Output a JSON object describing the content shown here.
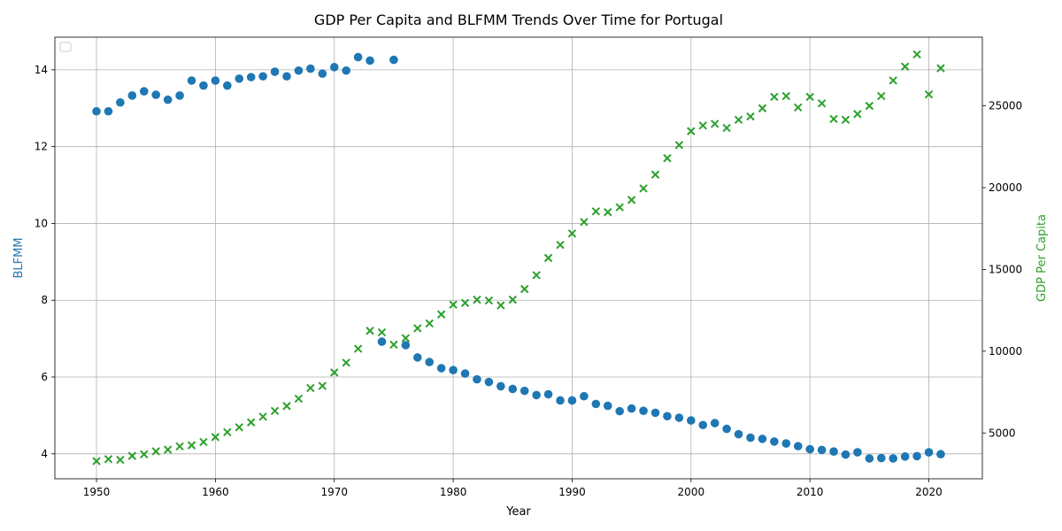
{
  "chart_data": {
    "type": "scatter",
    "title": "GDP Per Capita and BLFMM Trends Over Time for Portugal",
    "xlabel": "Year",
    "ylabel_left": "BLFMM",
    "ylabel_right": "GDP Per Capita",
    "xlim": [
      1946.5,
      2024.5
    ],
    "ylim_left": [
      3.35,
      14.85
    ],
    "ylim_right": [
      2200,
      29200
    ],
    "x_ticks": [
      1950,
      1960,
      1970,
      1980,
      1990,
      2000,
      2010,
      2020
    ],
    "y_ticks_left": [
      4,
      6,
      8,
      10,
      12,
      14
    ],
    "y_ticks_right": [
      5000,
      10000,
      15000,
      20000,
      25000
    ],
    "grid": true,
    "legend": "top-left (empty)",
    "colors": {
      "blfmm": "#1f77b4",
      "gdp": "#2ca02c"
    },
    "series": [
      {
        "name": "BLFMM",
        "axis": "left",
        "marker": "circle",
        "x": [
          1950,
          1951,
          1952,
          1953,
          1954,
          1955,
          1956,
          1957,
          1958,
          1959,
          1960,
          1961,
          1962,
          1963,
          1964,
          1965,
          1966,
          1967,
          1968,
          1969,
          1970,
          1971,
          1972,
          1973,
          1974,
          1975,
          1976,
          1977,
          1978,
          1979,
          1980,
          1981,
          1982,
          1983,
          1984,
          1985,
          1986,
          1987,
          1988,
          1989,
          1990,
          1991,
          1992,
          1993,
          1994,
          1995,
          1996,
          1997,
          1998,
          1999,
          2000,
          2001,
          2002,
          2003,
          2004,
          2005,
          2006,
          2007,
          2008,
          2009,
          2010,
          2011,
          2012,
          2013,
          2014,
          2015,
          2016,
          2017,
          2018,
          2019,
          2020,
          2021
        ],
        "y": [
          12.92,
          12.92,
          13.15,
          13.33,
          13.44,
          13.35,
          13.22,
          13.33,
          13.72,
          13.59,
          13.72,
          13.59,
          13.77,
          13.81,
          13.83,
          13.95,
          13.83,
          13.98,
          14.03,
          13.9,
          14.07,
          13.98,
          14.33,
          14.24,
          6.92,
          14.26,
          6.83,
          6.51,
          6.39,
          6.23,
          6.18,
          6.09,
          5.94,
          5.87,
          5.76,
          5.69,
          5.64,
          5.53,
          5.55,
          5.39,
          5.39,
          5.5,
          5.3,
          5.25,
          5.11,
          5.18,
          5.12,
          5.07,
          4.98,
          4.94,
          4.87,
          4.75,
          4.8,
          4.65,
          4.51,
          4.42,
          4.39,
          4.32,
          4.27,
          4.2,
          4.12,
          4.1,
          4.06,
          3.98,
          4.04,
          3.88,
          3.89,
          3.88,
          3.93,
          3.94,
          4.04,
          3.99
        ]
      },
      {
        "name": "GDP Per Capita",
        "axis": "right",
        "marker": "x",
        "x": [
          1950,
          1951,
          1952,
          1953,
          1954,
          1955,
          1956,
          1957,
          1958,
          1959,
          1960,
          1961,
          1962,
          1963,
          1964,
          1965,
          1966,
          1967,
          1968,
          1969,
          1970,
          1971,
          1972,
          1973,
          1974,
          1975,
          1976,
          1977,
          1978,
          1979,
          1980,
          1981,
          1982,
          1983,
          1984,
          1985,
          1986,
          1987,
          1988,
          1989,
          1990,
          1991,
          1992,
          1993,
          1994,
          1995,
          1996,
          1997,
          1998,
          1999,
          2000,
          2001,
          2002,
          2003,
          2004,
          2005,
          2006,
          2007,
          2008,
          2009,
          2010,
          2011,
          2012,
          2013,
          2014,
          2015,
          2016,
          2017,
          2018,
          2019,
          2020,
          2021
        ],
        "y": [
          3280,
          3400,
          3360,
          3600,
          3700,
          3880,
          3980,
          4180,
          4250,
          4450,
          4750,
          5050,
          5350,
          5650,
          6000,
          6350,
          6650,
          7100,
          7750,
          7880,
          8700,
          9300,
          10150,
          11250,
          11150,
          10400,
          10800,
          11400,
          11700,
          12250,
          12850,
          12950,
          13150,
          13100,
          12800,
          13150,
          13800,
          14650,
          15700,
          16500,
          17200,
          17900,
          18550,
          18500,
          18800,
          19250,
          19950,
          20800,
          21800,
          22600,
          23450,
          23800,
          23900,
          23650,
          24150,
          24350,
          24850,
          25550,
          25600,
          24900,
          25550,
          25150,
          24200,
          24150,
          24500,
          25000,
          25600,
          26550,
          27400,
          28150,
          25700,
          27300
        ]
      }
    ]
  }
}
